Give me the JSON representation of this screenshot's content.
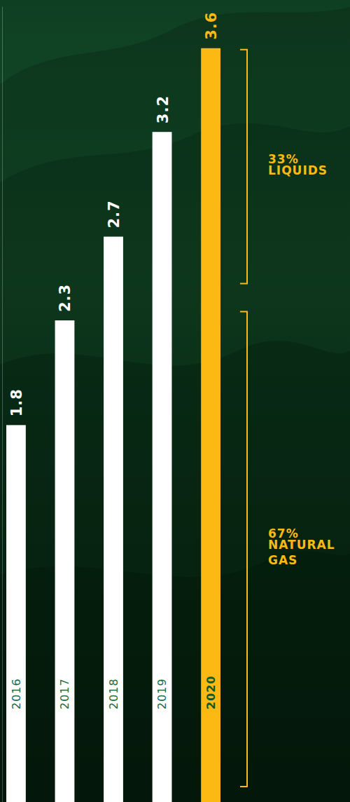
{
  "chart_data": {
    "type": "bar",
    "categories": [
      "2016",
      "2017",
      "2018",
      "2019",
      "2020"
    ],
    "values": [
      1.8,
      2.3,
      2.7,
      3.2,
      3.6
    ],
    "colors": [
      "#ffffff",
      "#ffffff",
      "#ffffff",
      "#ffffff",
      "#fdb913"
    ],
    "ylim": [
      0,
      3.8
    ],
    "grid": false,
    "data_labels": true,
    "tick_labels": "x",
    "segments": {
      "labels": [
        "LIQUIDS",
        "NATURAL GAS"
      ],
      "values": [
        33,
        67
      ],
      "value_labels": [
        "33%",
        "67%"
      ]
    }
  }
}
